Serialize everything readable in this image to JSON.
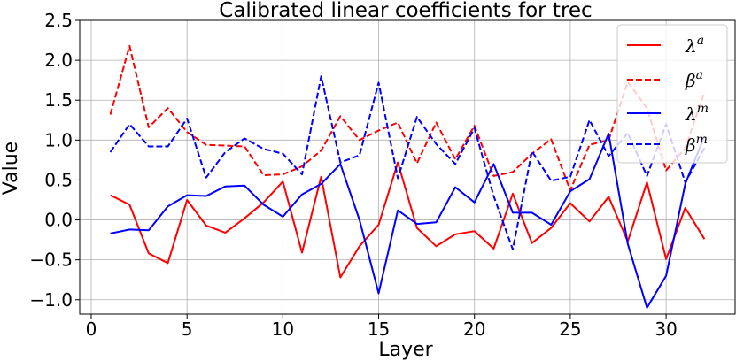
{
  "chart_data": {
    "type": "line",
    "title": "Calibrated linear coefficients for trec",
    "xlabel": "Layer",
    "ylabel": "Value",
    "xlim": [
      -0.6,
      33.6
    ],
    "ylim": [
      -1.18,
      2.5
    ],
    "xticks": [
      0,
      5,
      10,
      15,
      20,
      25,
      30
    ],
    "yticks": [
      -1.0,
      -0.5,
      0.0,
      0.5,
      1.0,
      1.5,
      2.0,
      2.5
    ],
    "ytick_labels": [
      "−1.0",
      "−0.5",
      "0.0",
      "0.5",
      "1.0",
      "1.5",
      "2.0",
      "2.5"
    ],
    "grid": true,
    "legend_position": "top-right",
    "x": [
      1,
      2,
      3,
      4,
      5,
      6,
      7,
      8,
      9,
      10,
      11,
      12,
      13,
      14,
      15,
      16,
      17,
      18,
      19,
      20,
      21,
      22,
      23,
      24,
      25,
      26,
      27,
      28,
      29,
      30,
      31,
      32
    ],
    "series": [
      {
        "name": "λ",
        "sup": "a",
        "color": "#ff0000",
        "dash": "solid",
        "values": [
          0.31,
          0.19,
          -0.42,
          -0.54,
          0.25,
          -0.07,
          -0.16,
          0.02,
          0.22,
          0.48,
          -0.41,
          0.54,
          -0.72,
          -0.33,
          -0.06,
          0.72,
          -0.1,
          -0.33,
          -0.18,
          -0.14,
          -0.36,
          0.33,
          -0.29,
          -0.1,
          0.21,
          -0.02,
          0.29,
          -0.27,
          0.47,
          -0.49,
          0.15,
          -0.24
        ]
      },
      {
        "name": "β",
        "sup": "a",
        "color": "#ff0000",
        "dash": "dashed",
        "values": [
          1.32,
          2.18,
          1.16,
          1.4,
          1.1,
          0.94,
          0.93,
          0.92,
          0.56,
          0.57,
          0.67,
          0.87,
          1.3,
          1.0,
          1.12,
          1.22,
          0.71,
          1.22,
          0.76,
          1.18,
          0.55,
          0.6,
          0.83,
          1.01,
          0.37,
          0.94,
          1.0,
          1.73,
          1.4,
          0.62,
          0.9,
          1.6
        ]
      },
      {
        "name": "λ",
        "sup": "m",
        "color": "#0000ff",
        "dash": "solid",
        "values": [
          -0.17,
          -0.12,
          -0.13,
          0.17,
          0.31,
          0.3,
          0.42,
          0.43,
          0.19,
          0.04,
          0.32,
          0.45,
          0.7,
          0.0,
          -0.92,
          0.12,
          -0.05,
          -0.03,
          0.41,
          0.22,
          0.7,
          0.09,
          0.09,
          -0.06,
          0.36,
          0.51,
          1.08,
          -0.3,
          -1.1,
          -0.7,
          0.45,
          1.05
        ]
      },
      {
        "name": "β",
        "sup": "m",
        "color": "#0000ff",
        "dash": "dashed",
        "values": [
          0.85,
          1.2,
          0.92,
          0.92,
          1.27,
          0.53,
          0.85,
          1.02,
          0.89,
          0.83,
          0.57,
          1.8,
          0.72,
          0.81,
          1.72,
          0.52,
          1.29,
          0.95,
          0.7,
          1.15,
          0.3,
          -0.37,
          0.86,
          0.49,
          0.54,
          1.25,
          0.8,
          1.09,
          0.55,
          1.2,
          0.47,
          0.9
        ]
      }
    ]
  }
}
